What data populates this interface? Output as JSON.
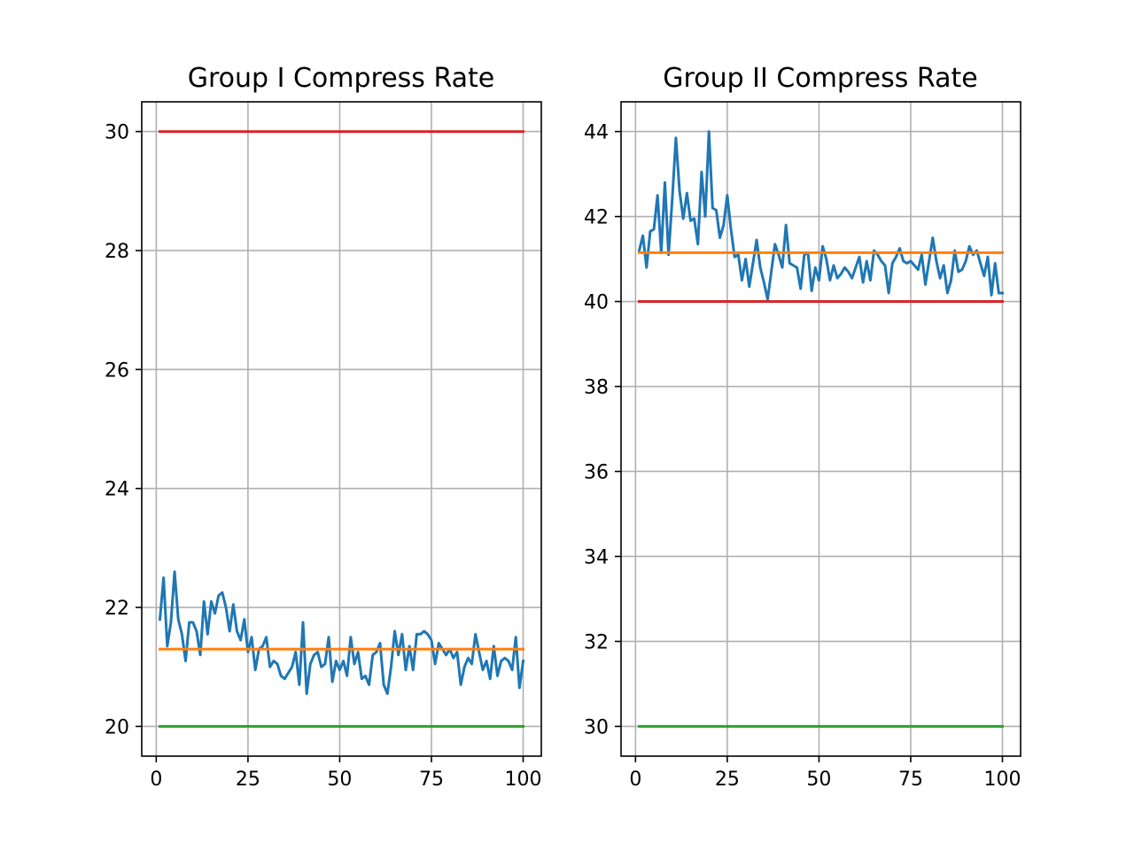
{
  "colors": {
    "blue": "#1f77b4",
    "orange": "#ff7f0e",
    "green": "#2ca02c",
    "red": "#d62728",
    "grid": "#b0b0b0"
  },
  "chart_data": [
    {
      "type": "line",
      "title": "Group I Compress Rate",
      "xlabel": "",
      "ylabel": "",
      "xlim": [
        -3.95,
        104.95
      ],
      "ylim": [
        19.5,
        30.5
      ],
      "xticks": [
        0,
        25,
        50,
        75,
        100
      ],
      "yticks": [
        20,
        22,
        24,
        26,
        28,
        30
      ],
      "grid": true,
      "legend": "none",
      "series": [
        {
          "color": "#1f77b4",
          "x": [
            1,
            2,
            3,
            4,
            5,
            6,
            7,
            8,
            9,
            10,
            11,
            12,
            13,
            14,
            15,
            16,
            17,
            18,
            19,
            20,
            21,
            22,
            23,
            24,
            25,
            26,
            27,
            28,
            29,
            30,
            31,
            32,
            33,
            34,
            35,
            36,
            37,
            38,
            39,
            40,
            41,
            42,
            43,
            44,
            45,
            46,
            47,
            48,
            49,
            50,
            51,
            52,
            53,
            54,
            55,
            56,
            57,
            58,
            59,
            60,
            61,
            62,
            63,
            64,
            65,
            66,
            67,
            68,
            69,
            70,
            71,
            72,
            73,
            74,
            75,
            76,
            77,
            78,
            79,
            80,
            81,
            82,
            83,
            84,
            85,
            86,
            87,
            88,
            89,
            90,
            91,
            92,
            93,
            94,
            95,
            96,
            97,
            98,
            99,
            100
          ],
          "values": [
            21.8,
            22.5,
            21.35,
            21.75,
            22.6,
            21.8,
            21.55,
            21.1,
            21.75,
            21.75,
            21.6,
            21.2,
            22.1,
            21.55,
            22.1,
            21.9,
            22.2,
            22.25,
            22.0,
            21.6,
            22.05,
            21.6,
            21.45,
            21.8,
            21.25,
            21.5,
            20.95,
            21.3,
            21.35,
            21.5,
            21.0,
            21.1,
            21.05,
            20.85,
            20.8,
            20.9,
            21.0,
            21.25,
            20.7,
            21.75,
            20.55,
            21.05,
            21.2,
            21.25,
            21.0,
            21.05,
            21.5,
            20.75,
            21.1,
            20.95,
            21.1,
            20.85,
            21.5,
            21.05,
            21.25,
            20.8,
            20.85,
            20.7,
            21.2,
            21.25,
            21.4,
            20.7,
            20.55,
            21.0,
            21.6,
            21.2,
            21.55,
            20.95,
            21.35,
            20.95,
            21.55,
            21.55,
            21.6,
            21.55,
            21.45,
            21.05,
            21.4,
            21.3,
            21.2,
            21.3,
            21.15,
            21.25,
            20.7,
            21.0,
            21.15,
            21.05,
            21.55,
            21.25,
            20.95,
            21.1,
            20.8,
            21.35,
            20.85,
            21.1,
            21.15,
            21.1,
            20.95,
            21.5,
            20.65,
            21.1
          ]
        },
        {
          "color": "#ff7f0e",
          "x": [
            1,
            100
          ],
          "values": [
            21.3,
            21.3
          ]
        },
        {
          "color": "#2ca02c",
          "x": [
            1,
            100
          ],
          "values": [
            20,
            20
          ]
        },
        {
          "color": "#d62728",
          "x": [
            1,
            100
          ],
          "values": [
            30,
            30
          ]
        }
      ]
    },
    {
      "type": "line",
      "title": "Group II Compress Rate",
      "xlabel": "",
      "ylabel": "",
      "xlim": [
        -3.95,
        104.95
      ],
      "ylim": [
        29.3,
        44.7
      ],
      "xticks": [
        0,
        25,
        50,
        75,
        100
      ],
      "yticks": [
        30,
        32,
        34,
        36,
        38,
        40,
        42,
        44
      ],
      "grid": true,
      "legend": "none",
      "series": [
        {
          "color": "#1f77b4",
          "x": [
            1,
            2,
            3,
            4,
            5,
            6,
            7,
            8,
            9,
            10,
            11,
            12,
            13,
            14,
            15,
            16,
            17,
            18,
            19,
            20,
            21,
            22,
            23,
            24,
            25,
            26,
            27,
            28,
            29,
            30,
            31,
            32,
            33,
            34,
            35,
            36,
            37,
            38,
            39,
            40,
            41,
            42,
            43,
            44,
            45,
            46,
            47,
            48,
            49,
            50,
            51,
            52,
            53,
            54,
            55,
            56,
            57,
            58,
            59,
            60,
            61,
            62,
            63,
            64,
            65,
            66,
            67,
            68,
            69,
            70,
            71,
            72,
            73,
            74,
            75,
            76,
            77,
            78,
            79,
            80,
            81,
            82,
            83,
            84,
            85,
            86,
            87,
            88,
            89,
            90,
            91,
            92,
            93,
            94,
            95,
            96,
            97,
            98,
            99,
            100
          ],
          "values": [
            41.2,
            41.55,
            40.8,
            41.65,
            41.7,
            42.5,
            41.15,
            42.8,
            41.1,
            42.4,
            43.85,
            42.6,
            41.95,
            42.55,
            41.9,
            41.95,
            41.35,
            43.05,
            42.0,
            44.0,
            42.2,
            42.15,
            41.5,
            41.8,
            42.5,
            41.7,
            41.05,
            41.1,
            40.5,
            41.0,
            40.35,
            40.9,
            41.45,
            40.8,
            40.45,
            40.05,
            40.7,
            41.35,
            41.1,
            40.8,
            41.8,
            40.9,
            40.85,
            40.8,
            40.3,
            41.1,
            41.15,
            40.25,
            40.8,
            40.5,
            41.3,
            41.0,
            40.5,
            40.85,
            40.55,
            40.65,
            40.8,
            40.7,
            40.55,
            40.8,
            41.05,
            40.45,
            40.95,
            40.5,
            41.2,
            41.1,
            40.95,
            40.85,
            40.2,
            40.9,
            41.05,
            41.25,
            40.95,
            40.9,
            40.95,
            40.85,
            40.75,
            41.1,
            40.4,
            40.95,
            41.5,
            40.95,
            40.55,
            40.85,
            40.2,
            40.5,
            41.2,
            40.7,
            40.75,
            40.95,
            41.3,
            41.1,
            41.2,
            40.9,
            40.6,
            41.05,
            40.15,
            40.9,
            40.2,
            40.2
          ]
        },
        {
          "color": "#ff7f0e",
          "x": [
            1,
            100
          ],
          "values": [
            41.15,
            41.15
          ]
        },
        {
          "color": "#2ca02c",
          "x": [
            1,
            100
          ],
          "values": [
            30,
            30
          ]
        },
        {
          "color": "#d62728",
          "x": [
            1,
            100
          ],
          "values": [
            40,
            40
          ]
        }
      ]
    }
  ]
}
